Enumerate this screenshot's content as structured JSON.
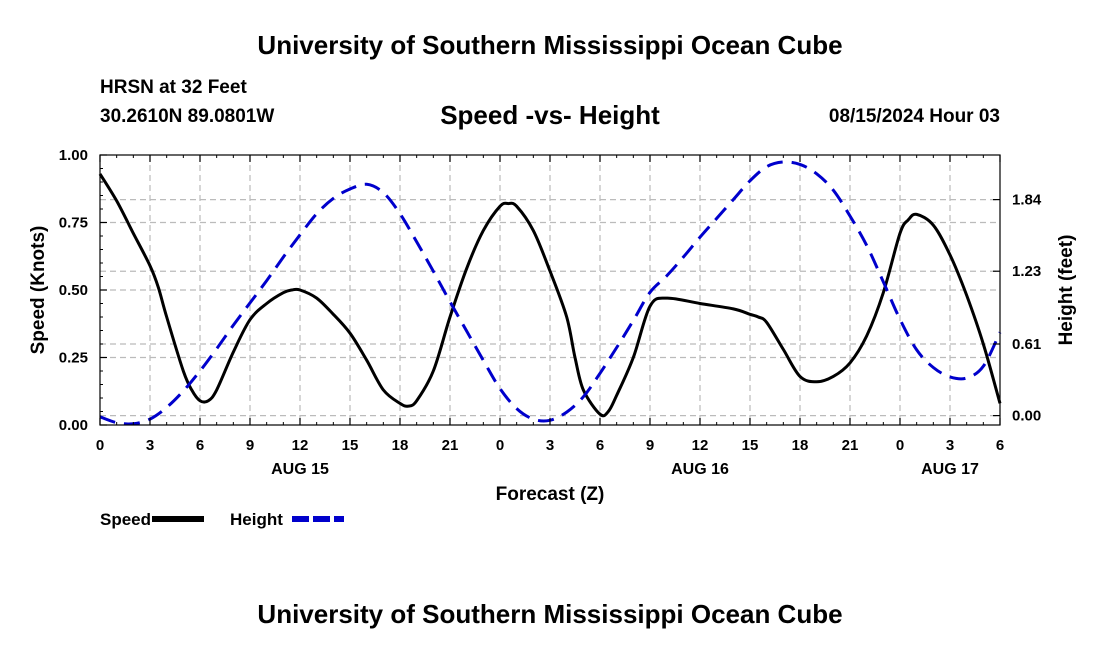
{
  "header": {
    "title": "University of Southern Mississippi Ocean Cube",
    "station": "HRSN at 32 Feet",
    "coords": "30.2610N  89.0801W",
    "chart_title": "Speed -vs- Height",
    "run_time": "08/15/2024 Hour 03"
  },
  "footer": {
    "title": "University of Southern Mississippi Ocean Cube"
  },
  "colors": {
    "speed": "#000000",
    "height": "#0000cc",
    "grid": "#bbbbbb"
  },
  "chart_data": {
    "type": "line",
    "title": "Speed -vs- Height",
    "xlabel": "Forecast (Z)",
    "ylabel": "Speed (Knots)",
    "y2label": "Height (feet)",
    "x_unit": "hours since 08/15 00Z",
    "xlim": [
      0,
      54
    ],
    "ylim": [
      0,
      1.0
    ],
    "y2lim": [
      -0.08,
      2.22
    ],
    "x_ticks": [
      0,
      3,
      6,
      9,
      12,
      15,
      18,
      21,
      24,
      27,
      30,
      33,
      36,
      39,
      42,
      45,
      48,
      51,
      54
    ],
    "x_tick_labels": [
      "0",
      "3",
      "6",
      "9",
      "12",
      "15",
      "18",
      "21",
      "0",
      "3",
      "6",
      "9",
      "12",
      "15",
      "18",
      "21",
      "0",
      "3",
      "6"
    ],
    "date_labels": [
      {
        "x": 12,
        "label": "AUG 15"
      },
      {
        "x": 36,
        "label": "AUG 16"
      },
      {
        "x": 51,
        "label": "AUG 17"
      }
    ],
    "y_ticks": [
      0,
      0.25,
      0.5,
      0.75,
      1.0
    ],
    "y_tick_labels": [
      "0.00",
      "0.25",
      "0.50",
      "0.75",
      "1.00"
    ],
    "y2_ticks": [
      0,
      0.61,
      1.23,
      1.84
    ],
    "y2_tick_labels": [
      "0.00",
      "0.61",
      "1.23",
      "1.84"
    ],
    "grid": true,
    "series": [
      {
        "name": "Speed",
        "axis": "left",
        "style": "solid",
        "x": [
          0,
          1,
          2,
          3,
          3.5,
          4,
          5,
          5.5,
          6,
          6.5,
          7,
          8,
          9,
          10,
          11,
          11.5,
          12,
          13,
          14,
          15,
          16,
          17,
          18,
          18.5,
          19,
          20,
          21,
          22,
          23,
          24,
          24.5,
          25,
          26,
          27,
          28,
          28.5,
          29,
          30,
          30.5,
          31,
          32,
          33,
          34,
          36,
          38,
          39,
          39.5,
          40,
          41,
          42,
          43,
          44,
          45,
          46,
          47,
          48,
          48.5,
          49,
          50,
          51,
          52,
          53,
          54
        ],
        "values": [
          0.93,
          0.83,
          0.71,
          0.59,
          0.51,
          0.4,
          0.2,
          0.13,
          0.09,
          0.09,
          0.13,
          0.27,
          0.39,
          0.45,
          0.49,
          0.5,
          0.5,
          0.47,
          0.41,
          0.34,
          0.24,
          0.13,
          0.08,
          0.07,
          0.09,
          0.2,
          0.4,
          0.58,
          0.72,
          0.81,
          0.82,
          0.81,
          0.72,
          0.57,
          0.4,
          0.25,
          0.13,
          0.04,
          0.05,
          0.11,
          0.25,
          0.44,
          0.47,
          0.45,
          0.43,
          0.41,
          0.4,
          0.38,
          0.28,
          0.18,
          0.16,
          0.18,
          0.23,
          0.33,
          0.49,
          0.71,
          0.76,
          0.78,
          0.74,
          0.63,
          0.48,
          0.3,
          0.08
        ]
      },
      {
        "name": "Height",
        "axis": "right",
        "style": "dashed",
        "x": [
          0,
          1,
          2,
          3,
          4,
          5,
          6,
          7,
          8,
          9,
          10,
          11,
          12,
          13,
          14,
          15,
          16,
          17,
          18,
          19,
          20,
          21,
          22,
          23,
          24,
          25,
          26,
          27,
          28,
          29,
          30,
          31,
          32,
          33,
          34,
          35,
          36,
          37,
          38,
          39,
          40,
          41,
          42,
          43,
          44,
          45,
          46,
          47,
          48,
          49,
          50,
          51,
          52,
          53,
          54
        ],
        "values": [
          -0.01,
          -0.06,
          -0.07,
          -0.03,
          0.07,
          0.21,
          0.38,
          0.57,
          0.77,
          0.96,
          1.15,
          1.35,
          1.54,
          1.72,
          1.85,
          1.93,
          1.97,
          1.9,
          1.72,
          1.48,
          1.23,
          0.97,
          0.72,
          0.47,
          0.23,
          0.06,
          -0.03,
          -0.04,
          0.03,
          0.16,
          0.36,
          0.58,
          0.81,
          1.05,
          1.19,
          1.35,
          1.52,
          1.68,
          1.84,
          2.0,
          2.12,
          2.16,
          2.14,
          2.06,
          1.92,
          1.7,
          1.45,
          1.14,
          0.82,
          0.56,
          0.41,
          0.33,
          0.32,
          0.42,
          0.71
        ]
      }
    ],
    "legend": [
      {
        "label": "Speed",
        "style": "solid"
      },
      {
        "label": "Height",
        "style": "dashed"
      }
    ]
  }
}
